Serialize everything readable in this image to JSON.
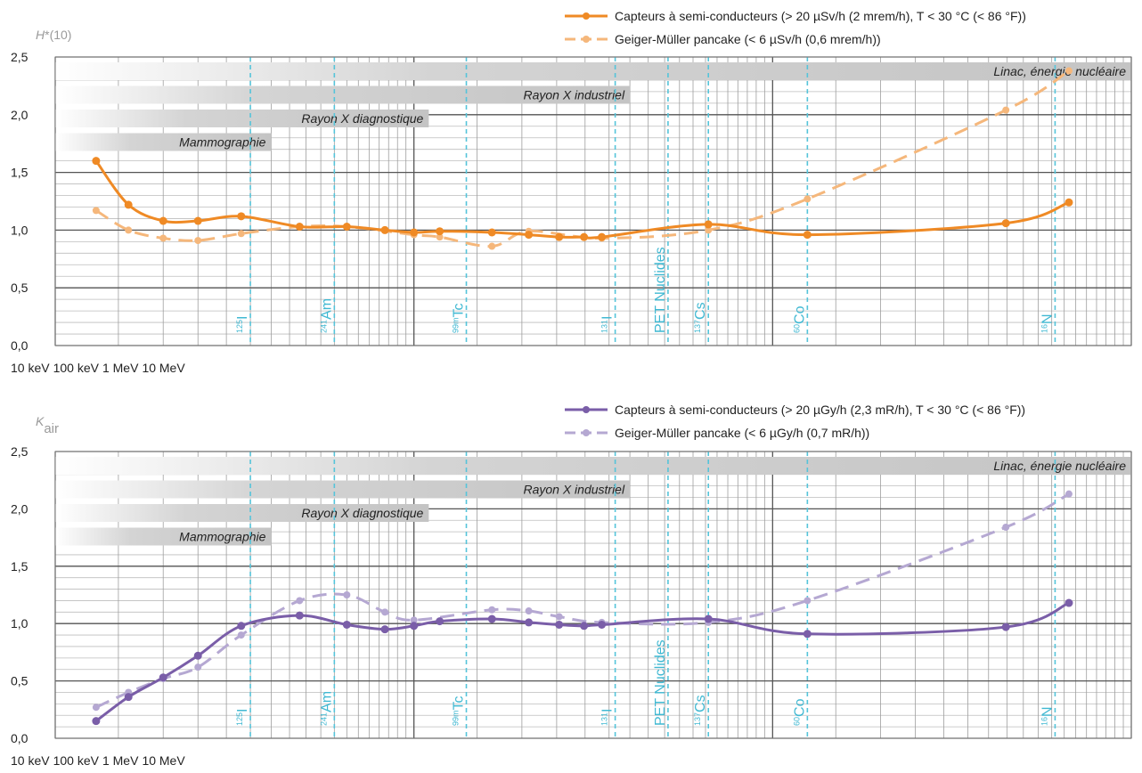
{
  "chart_data": [
    {
      "type": "line",
      "title": {
        "symbol": "H",
        "suffix": "*(10)"
      },
      "xscale": "log",
      "legend": "top-right",
      "grid": true,
      "xlim": [
        10,
        10000
      ],
      "xticks": [
        {
          "value": 10,
          "label": "10 keV"
        },
        {
          "value": 100,
          "label": "100 keV"
        },
        {
          "value": 1000,
          "label": "1 MeV"
        },
        {
          "value": 10000,
          "label": "10 MeV"
        }
      ],
      "ylim": [
        0,
        2.5
      ],
      "yticks": [
        {
          "value": 0,
          "label": "0,0"
        },
        {
          "value": 0.5,
          "label": "0,5"
        },
        {
          "value": 1,
          "label": "1,0"
        },
        {
          "value": 1.5,
          "label": "1,5"
        },
        {
          "value": 2,
          "label": "2,0"
        },
        {
          "value": 2.5,
          "label": "2,5"
        }
      ],
      "series": [
        {
          "name": "Capteurs à semi-conducteurs (> 20 µSv/h (2 mrem/h), T < 30 °C (< 86 °F))",
          "color": "#ef8a25",
          "style": "solid",
          "x": [
            13,
            16,
            20,
            25,
            33,
            48,
            65,
            83,
            100,
            118,
            165,
            209,
            254,
            298,
            334,
            662,
            1250,
            4470,
            6700
          ],
          "values": [
            1.6,
            1.22,
            1.08,
            1.08,
            1.12,
            1.03,
            1.03,
            1.0,
            0.98,
            0.99,
            0.98,
            0.96,
            0.94,
            0.94,
            0.94,
            1.05,
            0.96,
            1.06,
            1.24
          ]
        },
        {
          "name": "Geiger-Müller pancake (< 6 µSv/h (0,6 mrem/h))",
          "color": "#f5b77b",
          "style": "dashed",
          "x": [
            13,
            16,
            20,
            25,
            33,
            48,
            65,
            100,
            118,
            165,
            209,
            334,
            662,
            1250,
            4470,
            6700
          ],
          "values": [
            1.17,
            1.0,
            0.93,
            0.91,
            0.97,
            1.03,
            1.03,
            0.96,
            0.94,
            0.86,
            0.99,
            0.93,
            1.0,
            1.27,
            2.04,
            2.38
          ]
        }
      ],
      "bands": [
        {
          "label": "Mammographie",
          "end": 40
        },
        {
          "label": "Rayon X diagnostique",
          "end": 110
        },
        {
          "label": "Rayon X industriel",
          "end": 400
        },
        {
          "label": "Linac, énergie nucléaire",
          "end": 10000
        }
      ],
      "nuclides": [
        {
          "mass": "125",
          "symbol": "I",
          "energy": 35
        },
        {
          "mass": "241",
          "symbol": "Am",
          "energy": 60
        },
        {
          "mass": "99m",
          "symbol": "Tc",
          "energy": 140
        },
        {
          "mass": "131",
          "symbol": "I",
          "energy": 364
        },
        {
          "symbol": "PET Nuclides",
          "energy": 511
        },
        {
          "mass": "137",
          "symbol": "Cs",
          "energy": 662
        },
        {
          "mass": "60",
          "symbol": "Co",
          "energy": 1250
        },
        {
          "mass": "16",
          "symbol": "N",
          "energy": 6130
        }
      ]
    },
    {
      "type": "line",
      "title": {
        "symbol": "K",
        "subscript": "air"
      },
      "xscale": "log",
      "legend": "top-right",
      "grid": true,
      "xlim": [
        10,
        10000
      ],
      "xticks": [
        {
          "value": 10,
          "label": "10 keV"
        },
        {
          "value": 100,
          "label": "100 keV"
        },
        {
          "value": 1000,
          "label": "1 MeV"
        },
        {
          "value": 10000,
          "label": "10 MeV"
        }
      ],
      "ylim": [
        0,
        2.5
      ],
      "yticks": [
        {
          "value": 0,
          "label": "0,0"
        },
        {
          "value": 0.5,
          "label": "0,5"
        },
        {
          "value": 1,
          "label": "1,0"
        },
        {
          "value": 1.5,
          "label": "1,5"
        },
        {
          "value": 2,
          "label": "2,0"
        },
        {
          "value": 2.5,
          "label": "2,5"
        }
      ],
      "series": [
        {
          "name": "Capteurs à semi-conducteurs (> 20 µGy/h (2,3 mR/h), T < 30 °C (< 86 °F))",
          "color": "#7a5ea8",
          "style": "solid",
          "x": [
            13,
            16,
            20,
            25,
            33,
            48,
            65,
            83,
            100,
            118,
            165,
            209,
            254,
            298,
            334,
            662,
            1250,
            4470,
            6700
          ],
          "values": [
            0.15,
            0.36,
            0.53,
            0.72,
            0.98,
            1.07,
            0.99,
            0.95,
            0.98,
            1.02,
            1.04,
            1.01,
            0.99,
            0.98,
            0.99,
            1.04,
            0.91,
            0.97,
            1.18
          ]
        },
        {
          "name": "Geiger-Müller pancake (< 6 µGy/h (0,7 mR/h))",
          "color": "#b5a8d2",
          "style": "dashed",
          "x": [
            13,
            16,
            20,
            25,
            33,
            48,
            65,
            83,
            100,
            165,
            209,
            254,
            334,
            662,
            1250,
            4470,
            6700
          ],
          "values": [
            0.27,
            0.4,
            0.52,
            0.62,
            0.9,
            1.2,
            1.25,
            1.1,
            1.03,
            1.12,
            1.11,
            1.06,
            1.01,
            1.01,
            1.2,
            1.84,
            2.13
          ]
        }
      ],
      "bands": [
        {
          "label": "Mammographie",
          "end": 40
        },
        {
          "label": "Rayon X diagnostique",
          "end": 110
        },
        {
          "label": "Rayon X industriel",
          "end": 400
        },
        {
          "label": "Linac, énergie nucléaire",
          "end": 10000
        }
      ],
      "nuclides": [
        {
          "mass": "125",
          "symbol": "I",
          "energy": 35
        },
        {
          "mass": "241",
          "symbol": "Am",
          "energy": 60
        },
        {
          "mass": "99m",
          "symbol": "Tc",
          "energy": 140
        },
        {
          "mass": "131",
          "symbol": "I",
          "energy": 364
        },
        {
          "symbol": "PET Nuclides",
          "energy": 511
        },
        {
          "mass": "137",
          "symbol": "Cs",
          "energy": 662
        },
        {
          "mass": "60",
          "symbol": "Co",
          "energy": 1250
        },
        {
          "mass": "16",
          "symbol": "N",
          "energy": 6130
        }
      ]
    }
  ]
}
